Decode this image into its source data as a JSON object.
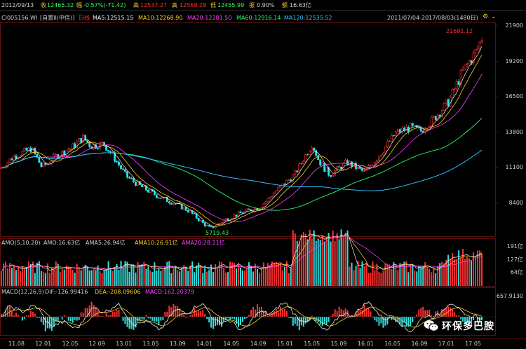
{
  "header": {
    "date": "2012/09/13",
    "open_label": "收",
    "open_value": "12465.32",
    "change_label": "幅",
    "change_value": "-0.57%(-71.42)",
    "high_label": "高",
    "high_value": "12537.27",
    "highest_label": "高",
    "highest_value": "12568.28",
    "low_label": "低",
    "low_value": "12455.99",
    "amp_label": "振",
    "amp_value": "0.90%",
    "vol_label": "额",
    "vol_value": "16.63亿"
  },
  "legend_main": {
    "code": "CI005156.WI",
    "mode": "[自置II(中信)]",
    "period": "日线",
    "ma5": "MA5:12515.15",
    "ma10": "MA10:12268.90",
    "ma20": "MA20:12281.50",
    "ma60": "MA60:12916.14",
    "ma120": "MA120:12535.52",
    "range": "2011/07/04-2017/08/03(1480日)"
  },
  "legend_amo": {
    "title": "AMO(5,10,20)",
    "amo": "AMO:16.63亿",
    "ama5": "AMA5:26.94亿",
    "ama10": "AMA10:26.91亿",
    "ama20": "AMA20:28.11亿"
  },
  "legend_macd": {
    "title": "MACD(12,26,9)",
    "dif": "DIF:-126.99416",
    "dea": "DEA:-208.09606",
    "macd": "MACD:162.20379"
  },
  "annotations": {
    "high_mark": "21681.12",
    "low_mark": "5719.43"
  },
  "y_axis_main": [
    "21900",
    "19200",
    "16500",
    "13800",
    "11100",
    "8400"
  ],
  "y_axis_amo": [
    "191亿",
    "127亿",
    "64亿"
  ],
  "y_axis_macd": [
    "657.9130"
  ],
  "x_axis": [
    "11.08",
    "12.01",
    "12.05",
    "12.09",
    "13.01",
    "13.05",
    "13.09",
    "14.01",
    "14.05",
    "14.09",
    "15.01",
    "15.05",
    "15.09",
    "16.01",
    "16.05",
    "16.09",
    "17.01",
    "17.05"
  ],
  "watermark": "环保多巴胺",
  "colors": {
    "up": "#ff3030",
    "down": "#30e0e0",
    "ma5": "#f0f0f0",
    "ma10": "#ffd020",
    "ma20": "#ff40ff",
    "ma60": "#20ff60",
    "ma120": "#30c0ff",
    "bg": "#000000"
  }
}
